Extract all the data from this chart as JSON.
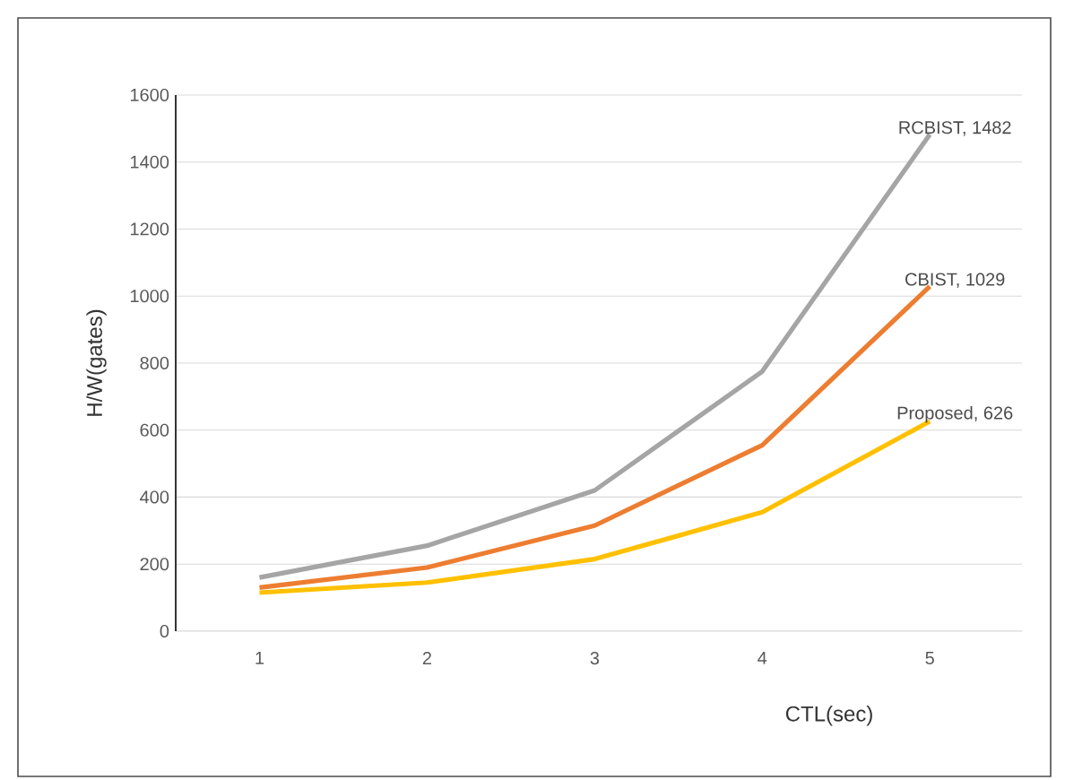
{
  "chart_data": {
    "type": "line",
    "xlabel": "CTL(sec)",
    "ylabel": "H/W(gates)",
    "categories": [
      "1",
      "2",
      "3",
      "4",
      "5"
    ],
    "series": [
      {
        "color": "#a5a5a5",
        "values": [
          160,
          255,
          420,
          775,
          1482
        ]
      },
      {
        "color": "#ed7d31",
        "values": [
          130,
          190,
          315,
          555,
          1029
        ]
      },
      {
        "color": "#ffc000",
        "values": [
          115,
          145,
          215,
          355,
          626
        ]
      }
    ],
    "ylim": [
      0,
      1600
    ],
    "yticks": [
      0,
      200,
      400,
      600,
      800,
      1000,
      1200,
      1400,
      1600
    ],
    "grid": "y",
    "marker": "none",
    "line_style": "solid",
    "annotations": [
      {
        "text": "RCBIST, 1482",
        "x": "5",
        "y": 1482
      },
      {
        "text": "CBIST, 1029",
        "x": "5",
        "y": 1029
      },
      {
        "text": "Proposed, 626",
        "x": "5",
        "y": 626
      }
    ]
  }
}
